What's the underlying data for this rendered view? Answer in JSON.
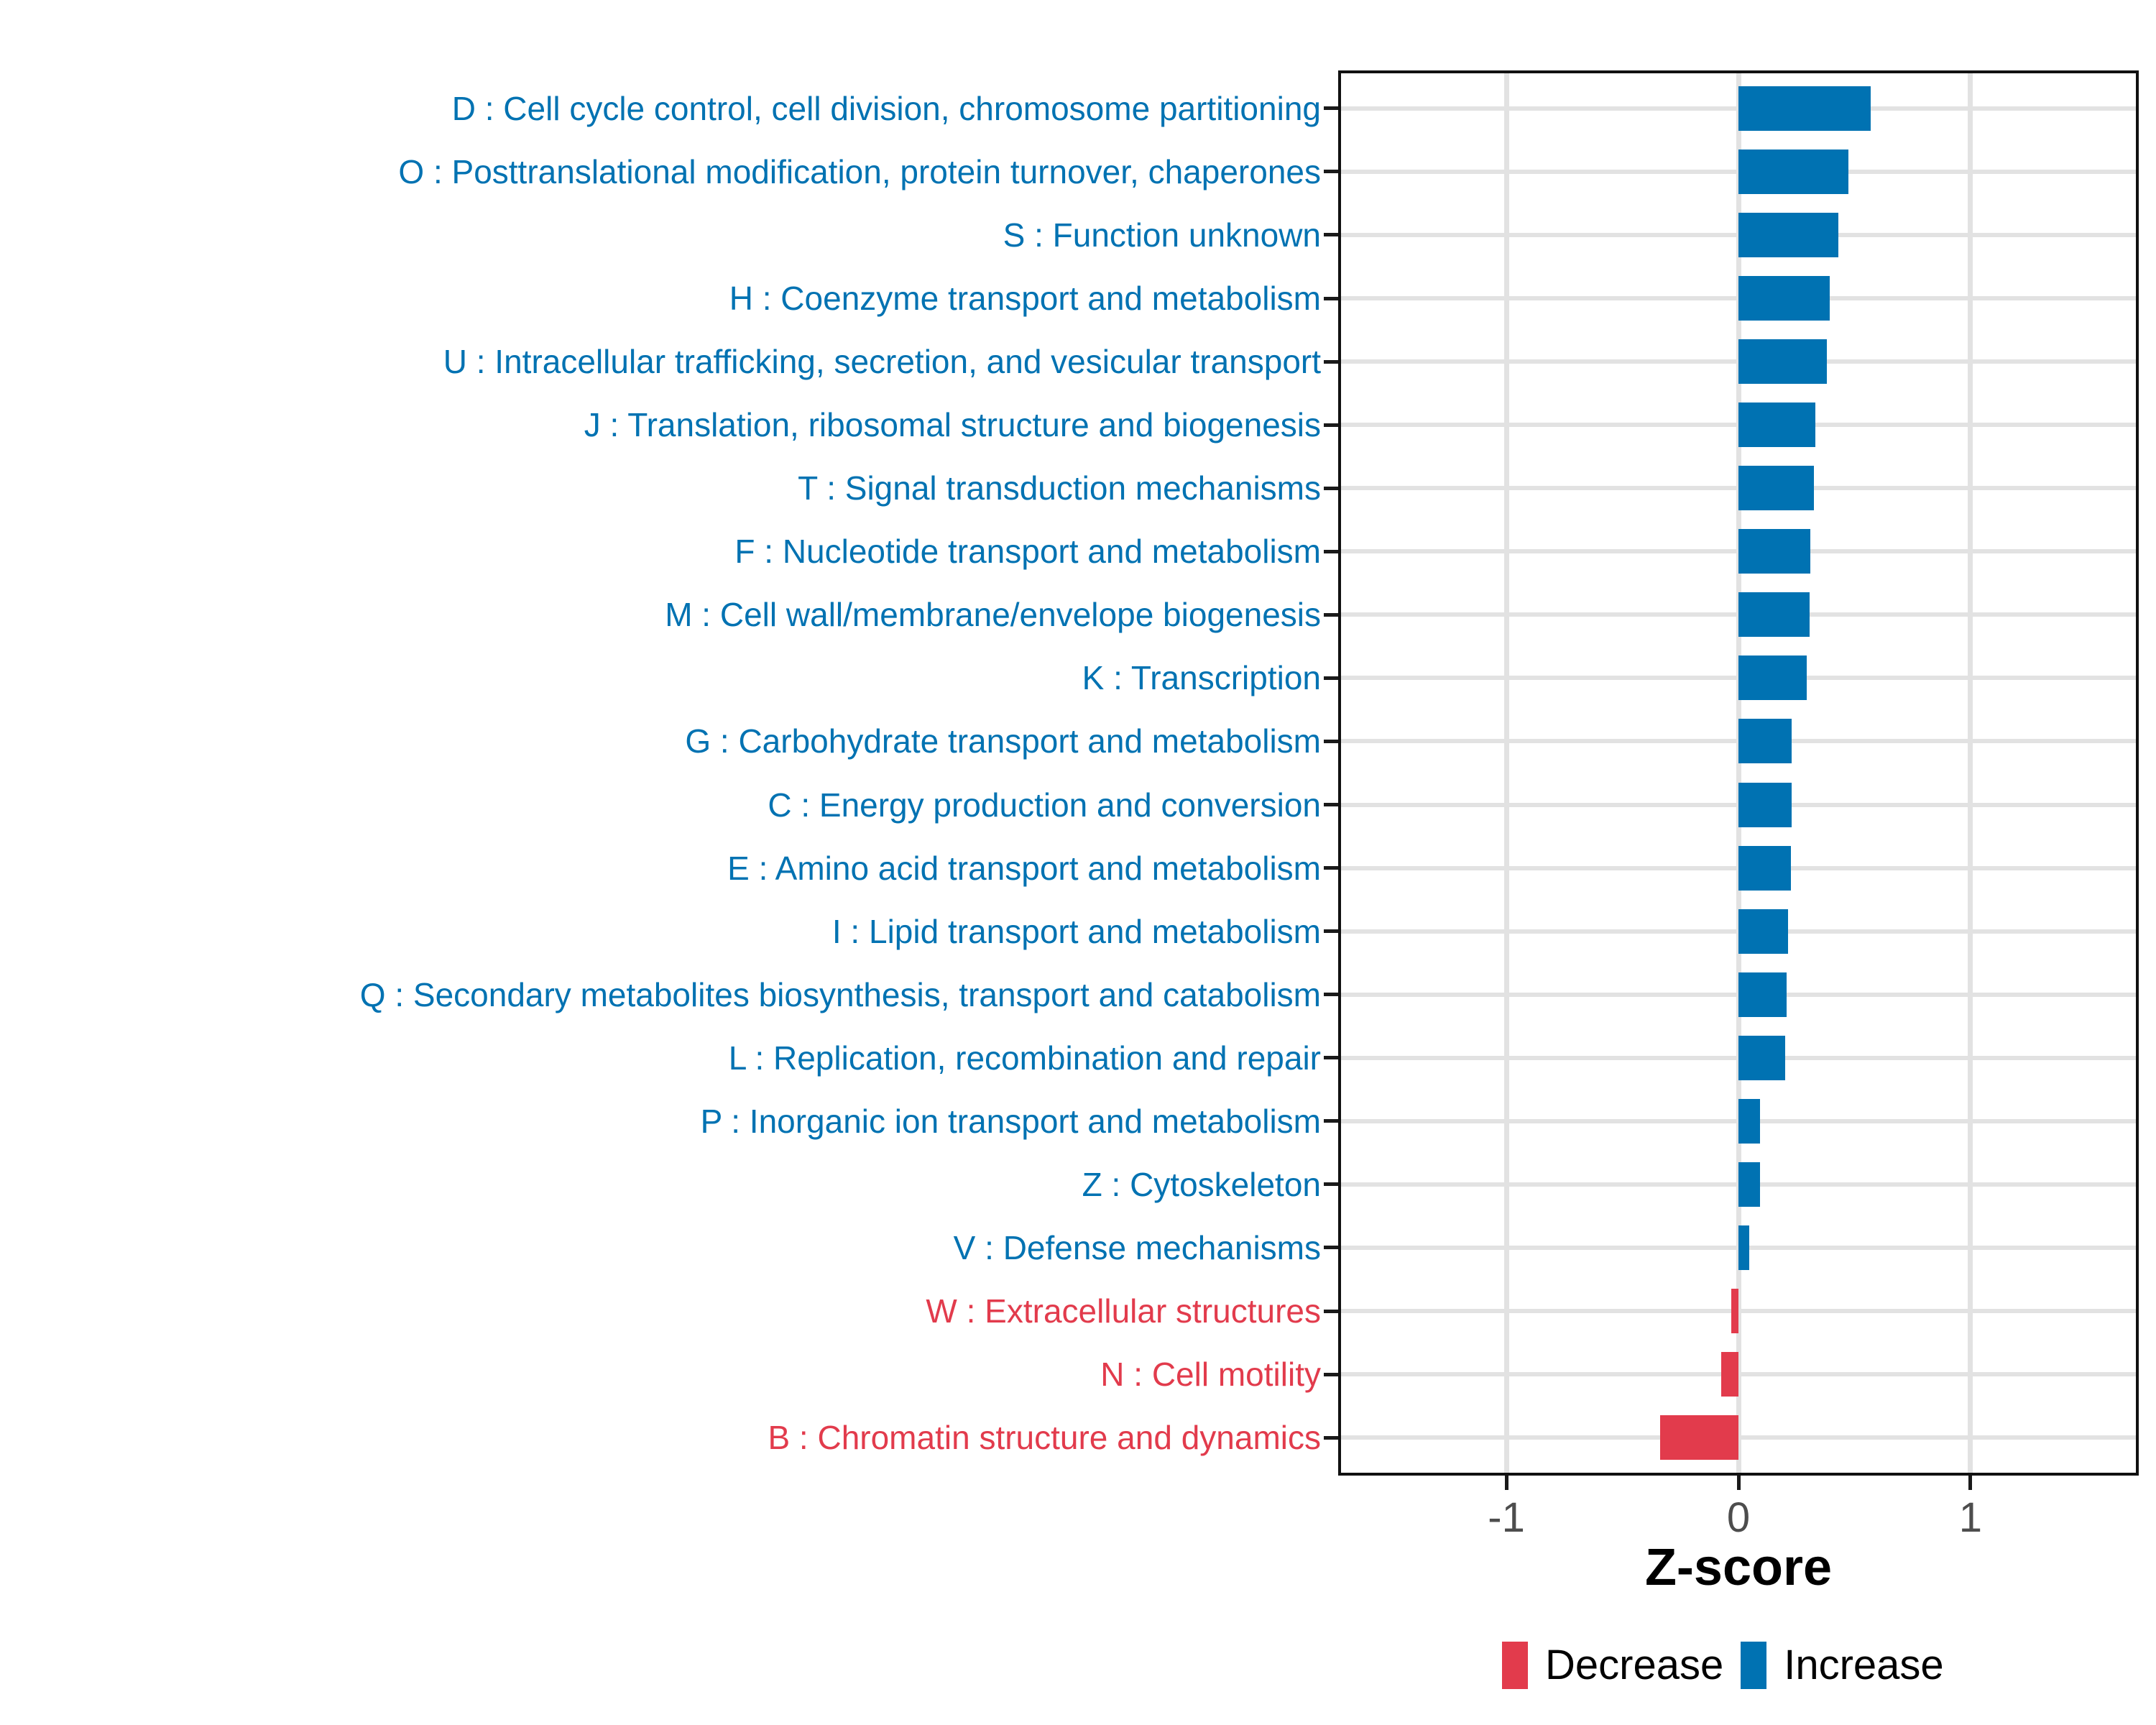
{
  "chart_data": {
    "type": "bar",
    "orientation": "horizontal",
    "xlabel": "Z-score",
    "x_ticks": [
      "-1",
      "0",
      "1"
    ],
    "x_tick_values": [
      -1,
      0,
      1
    ],
    "xlim": [
      -1.725,
      1.725
    ],
    "grid": true,
    "legend_position": "bottom",
    "colors": {
      "increase": "#0072B2",
      "decrease": "#E23B4C"
    },
    "legend": [
      {
        "label": "Decrease",
        "color": "#E23B4C"
      },
      {
        "label": "Increase",
        "color": "#0072B2"
      }
    ],
    "categories": [
      {
        "label": "D : Cell cycle control, cell division, chromosome partitioning",
        "z": 0.57,
        "direction": "Increase"
      },
      {
        "label": "O : Posttranslational modification, protein turnover, chaperones",
        "z": 0.475,
        "direction": "Increase"
      },
      {
        "label": "S : Function unknown",
        "z": 0.431,
        "direction": "Increase"
      },
      {
        "label": "H : Coenzyme transport and metabolism",
        "z": 0.394,
        "direction": "Increase"
      },
      {
        "label": "U : Intracellular trafficking, secretion, and vesicular transport",
        "z": 0.381,
        "direction": "Increase"
      },
      {
        "label": "J : Translation, ribosomal structure and biogenesis",
        "z": 0.332,
        "direction": "Increase"
      },
      {
        "label": "T : Signal transduction mechanisms",
        "z": 0.325,
        "direction": "Increase"
      },
      {
        "label": "F : Nucleotide transport and metabolism",
        "z": 0.311,
        "direction": "Increase"
      },
      {
        "label": "M : Cell wall/membrane/envelope biogenesis",
        "z": 0.306,
        "direction": "Increase"
      },
      {
        "label": "K : Transcription",
        "z": 0.294,
        "direction": "Increase"
      },
      {
        "label": "G : Carbohydrate transport and metabolism",
        "z": 0.23,
        "direction": "Increase"
      },
      {
        "label": "C : Energy production and conversion",
        "z": 0.229,
        "direction": "Increase"
      },
      {
        "label": "E : Amino acid transport and metabolism",
        "z": 0.226,
        "direction": "Increase"
      },
      {
        "label": "I : Lipid transport and metabolism",
        "z": 0.215,
        "direction": "Increase"
      },
      {
        "label": "Q : Secondary metabolites biosynthesis, transport and catabolism",
        "z": 0.208,
        "direction": "Increase"
      },
      {
        "label": "L : Replication, recombination and repair",
        "z": 0.202,
        "direction": "Increase"
      },
      {
        "label": "P : Inorganic ion transport and metabolism",
        "z": 0.094,
        "direction": "Increase"
      },
      {
        "label": "Z : Cytoskeleton",
        "z": 0.092,
        "direction": "Increase"
      },
      {
        "label": "V : Defense mechanisms",
        "z": 0.046,
        "direction": "Increase"
      },
      {
        "label": "W : Extracellular structures",
        "z": -0.031,
        "direction": "Decrease"
      },
      {
        "label": "N : Cell motility",
        "z": -0.073,
        "direction": "Decrease"
      },
      {
        "label": "B : Chromatin structure and dynamics",
        "z": -0.338,
        "direction": "Decrease"
      }
    ]
  }
}
